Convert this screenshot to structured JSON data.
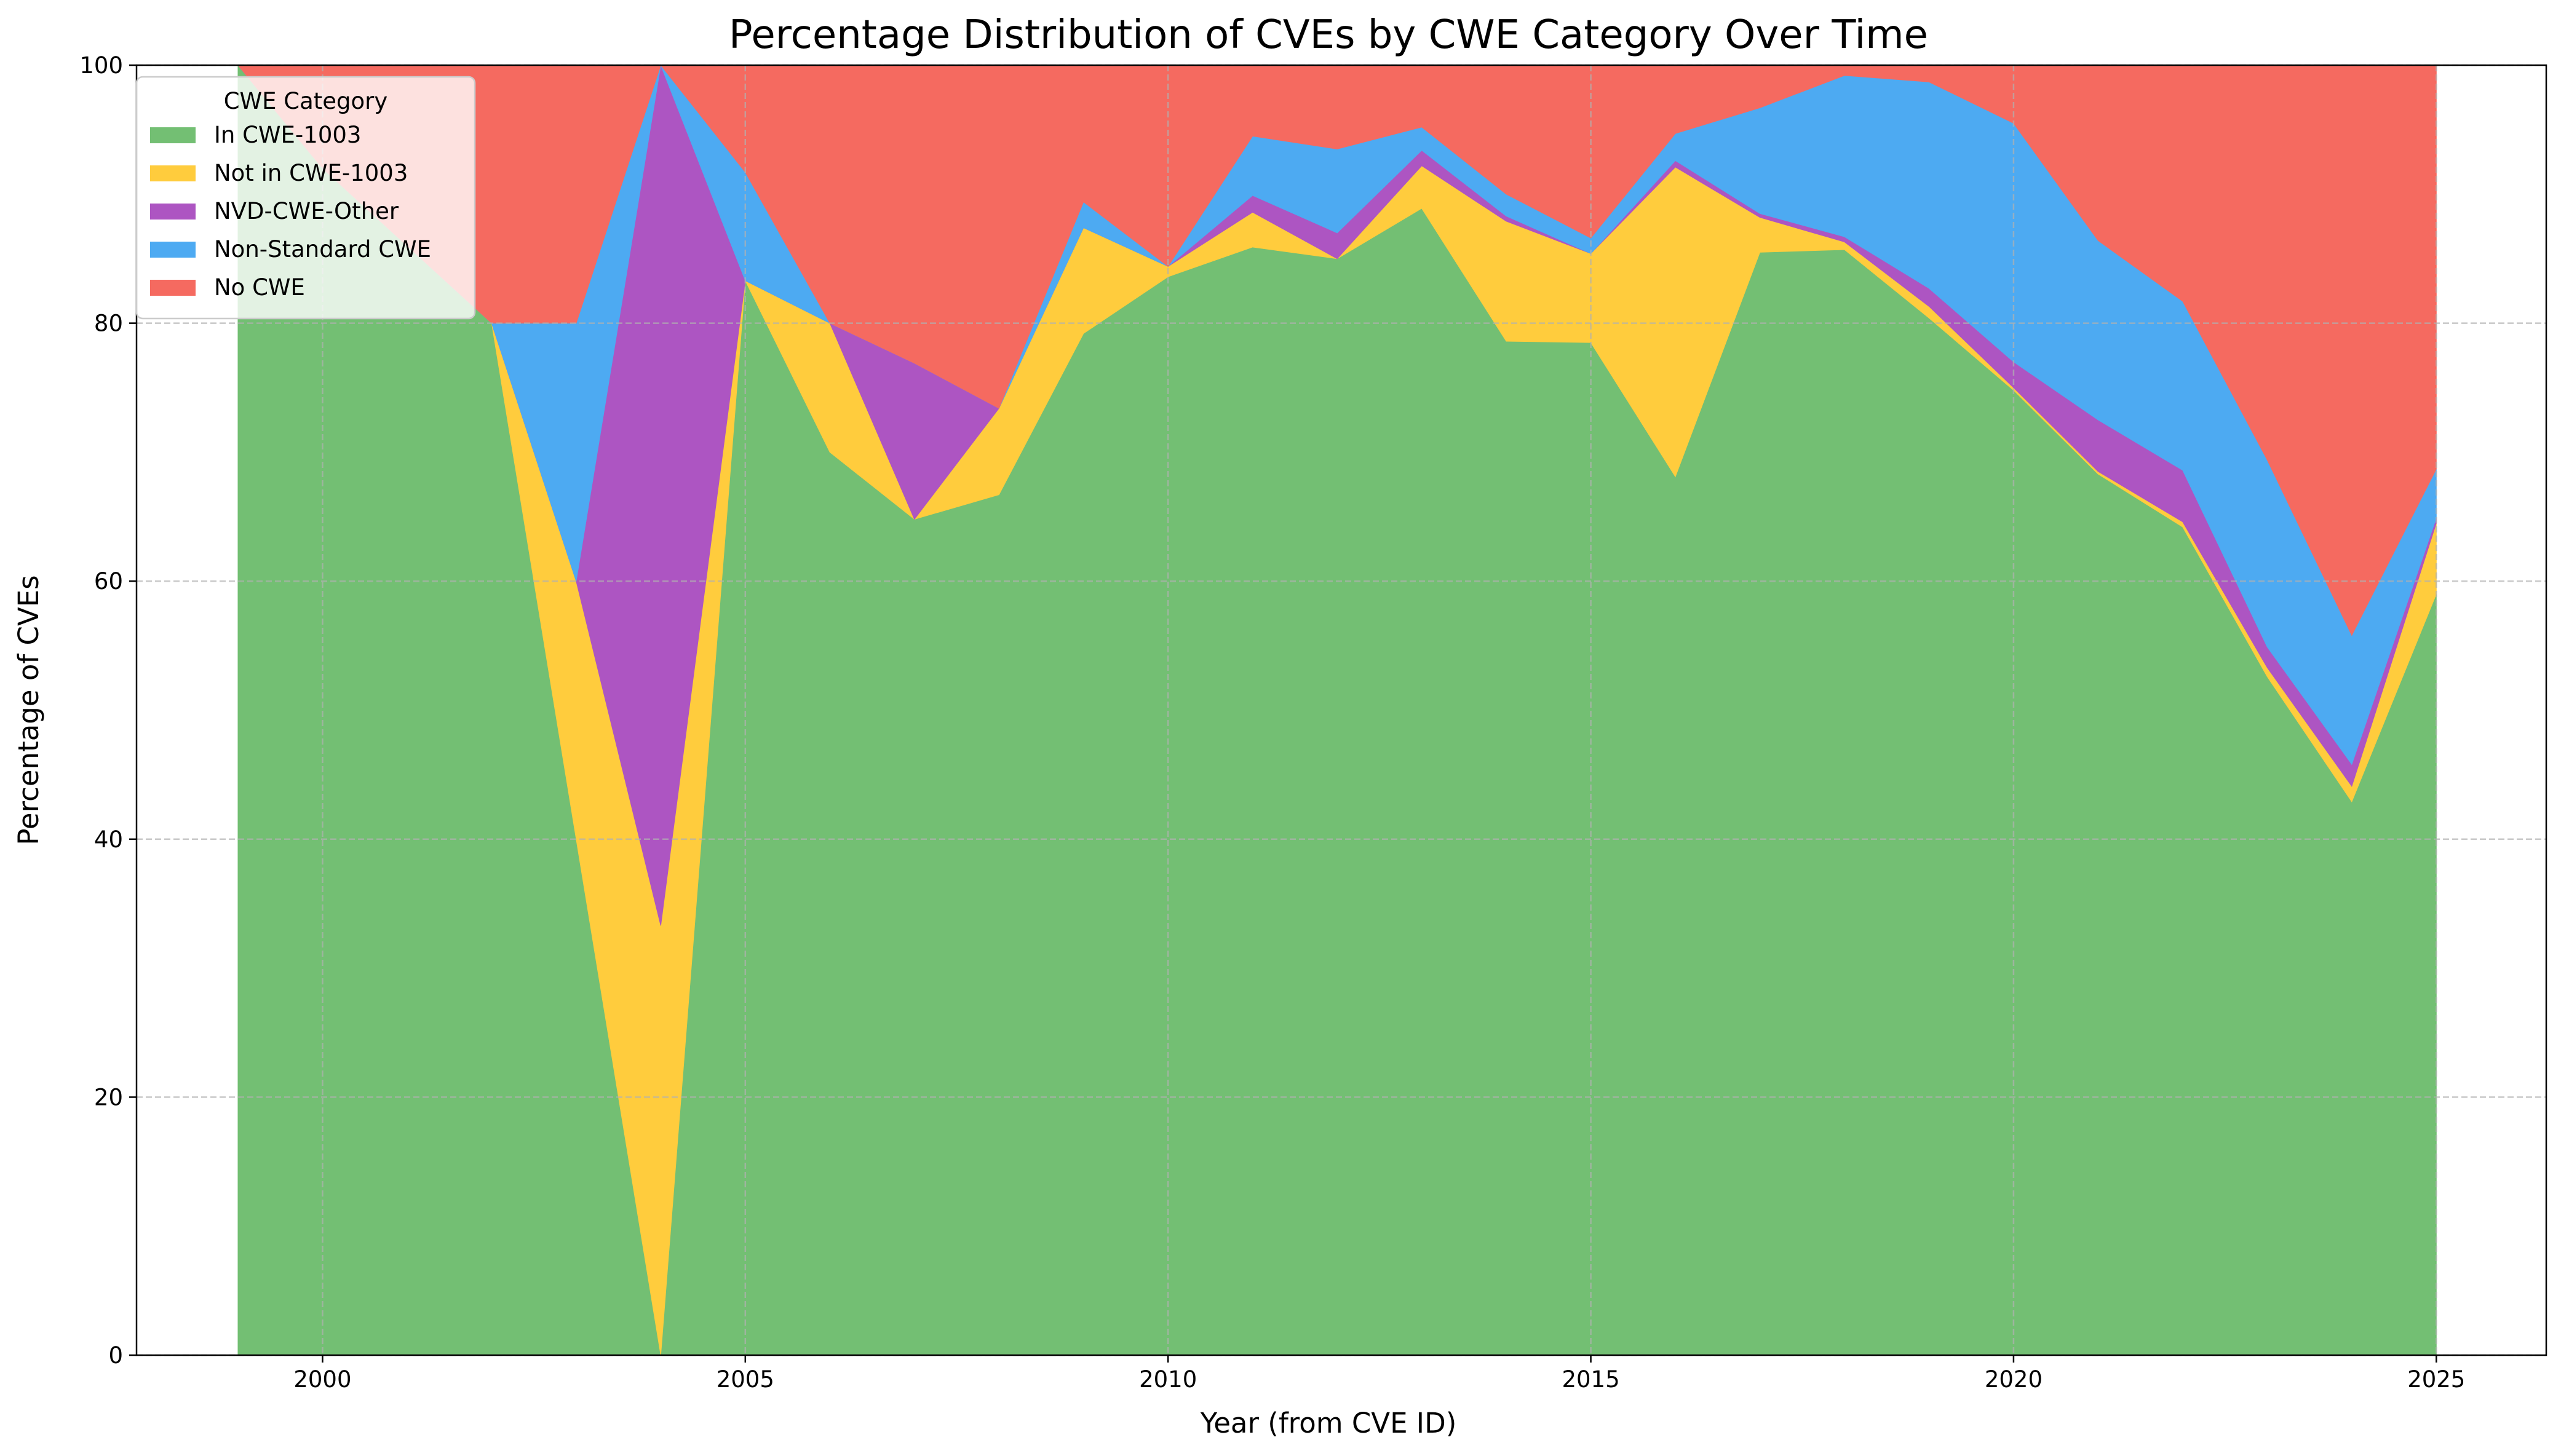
{
  "chart_data": {
    "type": "area",
    "title": "Percentage Distribution of CVEs by CWE Category Over Time",
    "xlabel": "Year (from CVE ID)",
    "ylabel": "Percentage of CVEs",
    "xlim": [
      1997.8,
      2026.3
    ],
    "ylim": [
      0,
      100
    ],
    "xticks": [
      2000,
      2005,
      2010,
      2015,
      2020,
      2025
    ],
    "yticks": [
      0,
      20,
      40,
      60,
      80,
      100
    ],
    "grid": true,
    "stacked": true,
    "legend": {
      "title": "CWE Category",
      "position": "top-left"
    },
    "x": [
      1999,
      2000,
      2001,
      2002,
      2003,
      2004,
      2005,
      2006,
      2007,
      2008,
      2009,
      2010,
      2011,
      2012,
      2013,
      2014,
      2015,
      2016,
      2017,
      2018,
      2019,
      2020,
      2021,
      2022,
      2023,
      2024,
      2025
    ],
    "series": [
      {
        "name": "In CWE-1003",
        "color": "#73bf73",
        "values": [
          100,
          92,
          86,
          80,
          40,
          0,
          83.3,
          70,
          64.8,
          66.7,
          79.2,
          83.6,
          85.9,
          85,
          88.9,
          78.6,
          78.5,
          68.1,
          85.5,
          85.7,
          80.4,
          74.8,
          68.3,
          64.2,
          52.6,
          42.9,
          59
        ]
      },
      {
        "name": "Not in CWE-1003",
        "color": "#ffcc3d",
        "values": [
          0,
          0,
          0,
          0,
          20,
          33.3,
          0,
          10,
          0,
          6.7,
          8.2,
          0.8,
          2.7,
          0,
          3.3,
          9.3,
          6.9,
          24,
          2.7,
          0.6,
          0.9,
          0.2,
          0.2,
          0.4,
          0.7,
          1.2,
          5.5
        ]
      },
      {
        "name": "NVD-CWE-Other",
        "color": "#ad55c2",
        "values": [
          0,
          0,
          0,
          0,
          0,
          66.7,
          0,
          0,
          12.1,
          0,
          0,
          0,
          1.3,
          2,
          1.2,
          0.4,
          0,
          0.5,
          0.3,
          0.4,
          1.4,
          2,
          4,
          4,
          1.6,
          1.7,
          0.4
        ]
      },
      {
        "name": "Non-Standard CWE",
        "color": "#4daaf2",
        "values": [
          0,
          0,
          0,
          0,
          20,
          0,
          8.4,
          0,
          0,
          0,
          2,
          0,
          4.6,
          6.5,
          1.8,
          1.7,
          1.2,
          2.1,
          8.2,
          12.5,
          16,
          18.5,
          13.9,
          13.1,
          14.5,
          10,
          3.8
        ]
      },
      {
        "name": "No CWE",
        "color": "#f56a60",
        "values": [
          0,
          8,
          14,
          20,
          20,
          0,
          8.3,
          20,
          23.1,
          26.6,
          10.6,
          15.6,
          5.5,
          6.5,
          4.8,
          10,
          13.4,
          5.3,
          3.3,
          0.8,
          1.3,
          4.5,
          13.6,
          18.3,
          30.6,
          44.2,
          31.3
        ]
      }
    ]
  }
}
